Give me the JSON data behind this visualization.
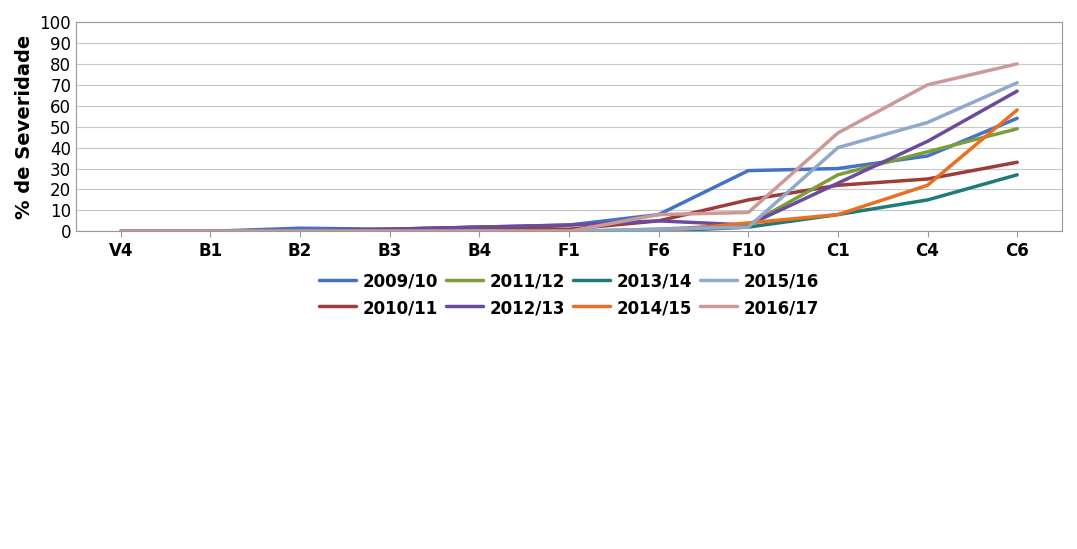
{
  "x_labels": [
    "V4",
    "B1",
    "B2",
    "B3",
    "B4",
    "F1",
    "F6",
    "F10",
    "C1",
    "C4",
    "C6"
  ],
  "series": [
    {
      "label": "2009/10",
      "color": "#4472C4",
      "values": [
        0,
        0,
        1.5,
        1,
        2,
        3,
        8,
        29,
        30,
        36,
        54
      ]
    },
    {
      "label": "2010/11",
      "color": "#9E3B3B",
      "values": [
        0,
        0,
        0,
        1,
        2,
        1,
        5,
        15,
        22,
        25,
        33
      ]
    },
    {
      "label": "2011/12",
      "color": "#7B9E3B",
      "values": [
        0,
        0,
        0,
        0,
        0,
        0,
        1,
        3,
        27,
        38,
        49
      ]
    },
    {
      "label": "2012/13",
      "color": "#6B4B9E",
      "values": [
        0,
        0,
        0,
        1,
        2,
        3,
        5,
        3,
        23,
        43,
        67
      ]
    },
    {
      "label": "2013/14",
      "color": "#217A7A",
      "values": [
        0,
        0,
        0,
        0,
        0,
        0,
        0,
        2,
        8,
        15,
        27
      ]
    },
    {
      "label": "2014/15",
      "color": "#E87020",
      "values": [
        0,
        0,
        0,
        0,
        0,
        0,
        0,
        4,
        8,
        22,
        58
      ]
    },
    {
      "label": "2015/16",
      "color": "#8FA8CC",
      "values": [
        0,
        0,
        0,
        0,
        0,
        0,
        1,
        2,
        40,
        52,
        71
      ]
    },
    {
      "label": "2016/17",
      "color": "#CC9999",
      "values": [
        0,
        0,
        0,
        0,
        0,
        0,
        8,
        9,
        47,
        70,
        80
      ]
    }
  ],
  "ylabel": "% de Severidade",
  "ylim": [
    0,
    100
  ],
  "yticks": [
    0,
    10,
    20,
    30,
    40,
    50,
    60,
    70,
    80,
    90,
    100
  ],
  "legend_ncol": 4,
  "background_color": "#ffffff",
  "grid_color": "#c8c8c8",
  "line_width": 2.5,
  "tick_fontsize": 12,
  "ylabel_fontsize": 14,
  "legend_fontsize": 12
}
